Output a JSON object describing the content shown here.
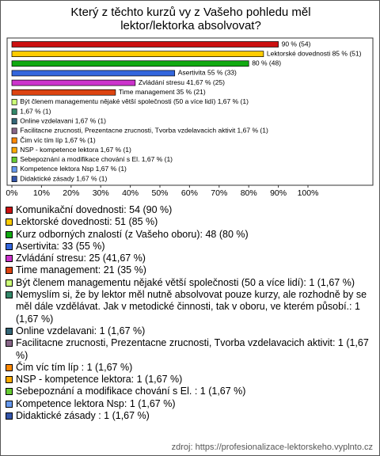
{
  "chart_data": {
    "type": "bar",
    "orientation": "horizontal",
    "title": "Který z těchto kurzů vy z Vašeho pohledu měl lektor/lektorka absolvovat?",
    "values": [
      90,
      85,
      80,
      55,
      41.67,
      35,
      1.67,
      1.67,
      1.67,
      1.67,
      1.67,
      1.67,
      1.67,
      1.67,
      1.67
    ],
    "value_labels": [
      "90 % (54)",
      "Lektorské dovednosti 85 % (51)",
      "80 % (48)",
      "Asertivita 55 % (33)",
      "Zvládání stresu 41,67 % (25)",
      "Time management 35 % (21)",
      "Být členem managementu nějaké větší společnosti (50 a více lidí) 1,67 % (1)",
      "1,67 % (1)",
      "Online vzdelavani 1,67 % (1)",
      "Facilitacne zrucnosti, Prezentacne zrucnosti, Tvorba vzdelavacich aktivit 1,67 % (1)",
      "Čim víc tím líp  1,67 % (1)",
      "NSP - kompetence lektora 1,67 % (1)",
      "Sebepoznání a modifikace chování s El.  1,67 % (1)",
      "Kompetence lektora Nsp 1,67 % (1)",
      "Didaktické zásady  1,67 % (1)"
    ],
    "colors": [
      "#cc1111",
      "#ffcc00",
      "#11aa11",
      "#3366dd",
      "#cc33cc",
      "#dd4411",
      "#ccff77",
      "#33886a",
      "#336677",
      "#886688",
      "#ff8800",
      "#ffaa00",
      "#66cc33",
      "#6699ee",
      "#3355aa"
    ],
    "legend_labels": [
      "Komunikační dovednosti: 54 (90 %)",
      "Lektorské dovednosti: 51 (85 %)",
      "Kurz odborných znalostí (z Vašeho oboru): 48 (80 %)",
      "Asertivita: 33 (55 %)",
      "Zvládání stresu: 25 (41,67 %)",
      "Time management: 21 (35 %)",
      "Být členem managementu nějaké větší společnosti (50 a více lidí): 1 (1,67 %)",
      "Nemyslím si, že by lektor měl nutně absolvovat pouze kurzy, ale rozhodně by se měl dále vzdělávat. Jak v metodické činnosti, tak v oboru, ve kterém působí.: 1 (1,67 %)",
      "Online vzdelavani: 1 (1,67 %)",
      "Facilitacne zrucnosti, Prezentacne zrucnosti, Tvorba vzdelavacich aktivit: 1 (1,67 %)",
      "Čim víc tím líp : 1 (1,67 %)",
      "NSP - kompetence lektora: 1 (1,67 %)",
      "Sebepoznání a modifikace chování s El. : 1 (1,67 %)",
      "Kompetence lektora Nsp: 1 (1,67 %)",
      "Didaktické zásady : 1 (1,67 %)"
    ],
    "xlim": [
      0,
      100
    ],
    "xticks": [
      {
        "value": 0,
        "label": "0%"
      },
      {
        "value": 10,
        "label": "10%"
      },
      {
        "value": 20,
        "label": "20%"
      },
      {
        "value": 30,
        "label": "30%"
      },
      {
        "value": 40,
        "label": "40%"
      },
      {
        "value": 50,
        "label": "50%"
      },
      {
        "value": 60,
        "label": "60%"
      },
      {
        "value": 70,
        "label": "70%"
      },
      {
        "value": 80,
        "label": "80%"
      },
      {
        "value": 90,
        "label": "90%"
      },
      {
        "value": 100,
        "label": "100%"
      }
    ],
    "source": "zdroj: https://profesionalizace-lektorskeho.vyplnto.cz"
  }
}
